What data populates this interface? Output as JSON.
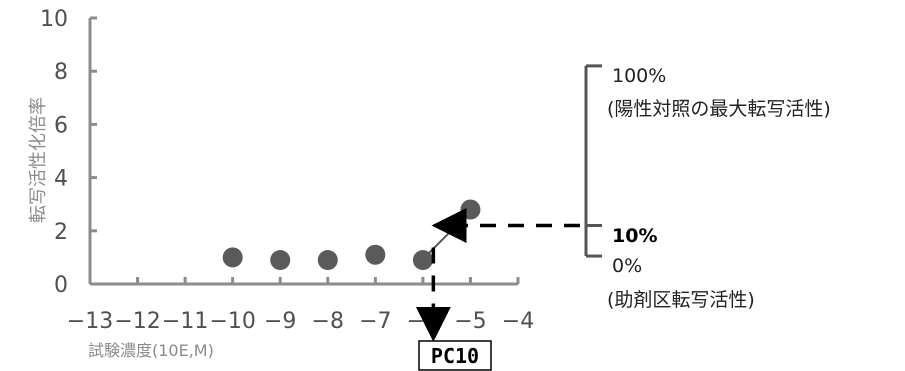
{
  "chart_data": {
    "type": "scatter",
    "title": "",
    "xlabel": "試験濃度(10E,M)",
    "ylabel": "転写活性化倍率",
    "xlim": [
      -13,
      -4
    ],
    "ylim": [
      0,
      10
    ],
    "x_ticks": [
      -13,
      -12,
      -11,
      -10,
      -9,
      -8,
      -7,
      -6,
      -5,
      -4
    ],
    "x_tick_labels": [
      "−13",
      "−12",
      "−11",
      "−10",
      "−9",
      "−8",
      "−7",
      "−6",
      "−5",
      "−4"
    ],
    "y_ticks": [
      0,
      2,
      4,
      6,
      8,
      10
    ],
    "y_tick_labels": [
      "0",
      "2",
      "4",
      "6",
      "8",
      "10"
    ],
    "grid": false,
    "series": [
      {
        "points": [
          {
            "x": -10,
            "y": 1.0
          },
          {
            "x": -9,
            "y": 0.9
          },
          {
            "x": -8,
            "y": 0.9
          },
          {
            "x": -7,
            "y": 1.1
          },
          {
            "x": -6,
            "y": 0.9
          },
          {
            "x": -5,
            "y": 2.8
          }
        ],
        "color": "#5a5a5a"
      }
    ],
    "annotations": {
      "top_label": "100%",
      "top_desc": "(陽性対照の最大転写活性)",
      "mid_label": "10%",
      "bottom_label": "0%",
      "bottom_desc": "(助剤区転写活性)",
      "pc_label": "PC10",
      "ten_percent_y": 2.2,
      "zero_percent_y": 0.9,
      "hundred_percent_y": 8.2,
      "pc_x": -5.78
    },
    "colors": {
      "axis": "#8c8c8c",
      "marker": "#5a5a5a",
      "bracket": "#555555",
      "arrow": "#000000"
    }
  }
}
